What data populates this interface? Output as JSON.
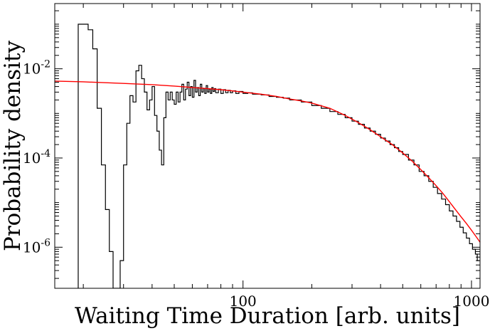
{
  "chart_data": {
    "type": "line",
    "title": "",
    "xlabel": "Waiting Time Duration [arb. units]",
    "ylabel": "Probability density",
    "x_scale": "log",
    "y_scale": "log",
    "xlim": [
      15,
      1090
    ],
    "ylim": [
      1.2e-07,
      0.29
    ],
    "grid": false,
    "legend": "none",
    "x_ticks": [
      {
        "value": 100,
        "label": "100"
      },
      {
        "value": 1000,
        "label": "1000"
      }
    ],
    "y_ticks": [
      {
        "value": 0.01,
        "base": "10",
        "exp": "-2"
      },
      {
        "value": 0.0001,
        "base": "10",
        "exp": "-4"
      },
      {
        "value": 1e-06,
        "base": "10",
        "exp": "-6"
      }
    ],
    "series": [
      {
        "kind": "histogram",
        "color": "#000000",
        "points": [
          [
            19,
            1.2e-07
          ],
          [
            19,
            0.1
          ],
          [
            21,
            0.1
          ],
          [
            21,
            0.075
          ],
          [
            22,
            0.075
          ],
          [
            22,
            0.028
          ],
          [
            23,
            0.028
          ],
          [
            23,
            0.0013
          ],
          [
            24,
            0.0013
          ],
          [
            24,
            7e-05
          ],
          [
            25,
            7e-05
          ],
          [
            25,
            7e-06
          ],
          [
            26,
            7e-06
          ],
          [
            26,
            8e-07
          ],
          [
            27,
            8e-07
          ],
          [
            27,
            1.2e-07
          ],
          [
            29,
            1.2e-07
          ],
          [
            29,
            5e-07
          ],
          [
            30,
            5e-07
          ],
          [
            30,
            7e-05
          ],
          [
            31,
            7e-05
          ],
          [
            31,
            0.0006
          ],
          [
            32,
            0.0006
          ],
          [
            32,
            0.0025
          ],
          [
            33,
            0.0025
          ],
          [
            33,
            0.0018
          ],
          [
            34,
            0.0018
          ],
          [
            34,
            0.009
          ],
          [
            35,
            0.009
          ],
          [
            35,
            0.012
          ],
          [
            36,
            0.012
          ],
          [
            36,
            0.006
          ],
          [
            37,
            0.006
          ],
          [
            37,
            0.003
          ],
          [
            38,
            0.003
          ],
          [
            38,
            0.0012
          ],
          [
            39,
            0.0012
          ],
          [
            39,
            0.002
          ],
          [
            40,
            0.002
          ],
          [
            40,
            0.004
          ],
          [
            41,
            0.004
          ],
          [
            41,
            0.0009
          ],
          [
            42,
            0.0009
          ],
          [
            42,
            0.0004
          ],
          [
            43,
            0.0004
          ],
          [
            43,
            0.00015
          ],
          [
            44,
            0.00015
          ],
          [
            44,
            7e-05
          ],
          [
            45,
            7e-05
          ],
          [
            45,
            0.0008
          ],
          [
            46,
            0.0008
          ],
          [
            46,
            0.003
          ],
          [
            47,
            0.003
          ],
          [
            47,
            0.002
          ],
          [
            48,
            0.002
          ],
          [
            48,
            0.003
          ],
          [
            49,
            0.003
          ],
          [
            49,
            0.002
          ],
          [
            50,
            0.002
          ],
          [
            50,
            0.0016
          ],
          [
            51,
            0.0016
          ],
          [
            51,
            0.003
          ],
          [
            52,
            0.003
          ],
          [
            52,
            0.0018
          ],
          [
            53,
            0.0018
          ],
          [
            53,
            0.003
          ],
          [
            54,
            0.003
          ],
          [
            54,
            0.0045
          ],
          [
            55,
            0.0045
          ],
          [
            55,
            0.002
          ],
          [
            56,
            0.002
          ],
          [
            56,
            0.0035
          ],
          [
            57,
            0.0035
          ],
          [
            57,
            0.005
          ],
          [
            58,
            0.005
          ],
          [
            58,
            0.0025
          ],
          [
            59,
            0.0025
          ],
          [
            59,
            0.004
          ],
          [
            60,
            0.004
          ],
          [
            60,
            0.0023
          ],
          [
            61,
            0.0023
          ],
          [
            61,
            0.0055
          ],
          [
            62,
            0.0055
          ],
          [
            62,
            0.003
          ],
          [
            63,
            0.003
          ],
          [
            63,
            0.0038
          ],
          [
            64,
            0.0038
          ],
          [
            64,
            0.0025
          ],
          [
            65,
            0.0025
          ],
          [
            65,
            0.0045
          ],
          [
            66,
            0.0045
          ],
          [
            66,
            0.003
          ],
          [
            67,
            0.003
          ],
          [
            67,
            0.0036
          ],
          [
            68,
            0.0036
          ],
          [
            68,
            0.0028
          ],
          [
            69,
            0.0028
          ],
          [
            69,
            0.0042
          ],
          [
            70,
            0.0042
          ],
          [
            70,
            0.003
          ],
          [
            71,
            0.003
          ],
          [
            71,
            0.0035
          ],
          [
            72,
            0.0035
          ],
          [
            72,
            0.0028
          ],
          [
            73,
            0.0028
          ],
          [
            73,
            0.0038
          ],
          [
            74,
            0.0038
          ],
          [
            74,
            0.0031
          ],
          [
            75,
            0.0031
          ],
          [
            75,
            0.0036
          ],
          [
            76,
            0.0036
          ],
          [
            76,
            0.0029
          ],
          [
            78,
            0.0029
          ],
          [
            78,
            0.0035
          ],
          [
            80,
            0.0035
          ],
          [
            80,
            0.0028
          ],
          [
            82,
            0.0028
          ],
          [
            82,
            0.0034
          ],
          [
            84,
            0.0034
          ],
          [
            84,
            0.0029
          ],
          [
            86,
            0.0029
          ],
          [
            86,
            0.0033
          ],
          [
            88,
            0.0033
          ],
          [
            88,
            0.0029
          ],
          [
            90,
            0.0029
          ],
          [
            90,
            0.0032
          ],
          [
            93,
            0.0032
          ],
          [
            93,
            0.0028
          ],
          [
            96,
            0.0028
          ],
          [
            96,
            0.0031
          ],
          [
            100,
            0.0031
          ],
          [
            100,
            0.0028
          ],
          [
            105,
            0.0028
          ],
          [
            105,
            0.0029
          ],
          [
            110,
            0.0029
          ],
          [
            110,
            0.0027
          ],
          [
            115,
            0.0027
          ],
          [
            115,
            0.0027
          ],
          [
            120,
            0.0027
          ],
          [
            120,
            0.0026
          ],
          [
            130,
            0.0026
          ],
          [
            130,
            0.0024
          ],
          [
            140,
            0.0024
          ],
          [
            140,
            0.0023
          ],
          [
            150,
            0.0023
          ],
          [
            150,
            0.0022
          ],
          [
            160,
            0.0022
          ],
          [
            160,
            0.002
          ],
          [
            180,
            0.002
          ],
          [
            180,
            0.0018
          ],
          [
            200,
            0.0018
          ],
          [
            200,
            0.0015
          ],
          [
            220,
            0.0015
          ],
          [
            220,
            0.0013
          ],
          [
            240,
            0.0013
          ],
          [
            240,
            0.0011
          ],
          [
            260,
            0.0011
          ],
          [
            260,
            0.00095
          ],
          [
            280,
            0.00095
          ],
          [
            280,
            0.0008
          ],
          [
            300,
            0.0008
          ],
          [
            300,
            0.00067
          ],
          [
            320,
            0.00067
          ],
          [
            320,
            0.00057
          ],
          [
            340,
            0.00057
          ],
          [
            340,
            0.00047
          ],
          [
            360,
            0.00047
          ],
          [
            360,
            0.0004
          ],
          [
            380,
            0.0004
          ],
          [
            380,
            0.00034
          ],
          [
            400,
            0.00034
          ],
          [
            400,
            0.00028
          ],
          [
            420,
            0.00028
          ],
          [
            420,
            0.00024
          ],
          [
            440,
            0.00024
          ],
          [
            440,
            0.0002
          ],
          [
            460,
            0.0002
          ],
          [
            460,
            0.00017
          ],
          [
            480,
            0.00017
          ],
          [
            480,
            0.00014
          ],
          [
            500,
            0.00014
          ],
          [
            500,
            0.00012
          ],
          [
            530,
            0.00012
          ],
          [
            530,
            9e-05
          ],
          [
            560,
            9e-05
          ],
          [
            560,
            7e-05
          ],
          [
            590,
            7e-05
          ],
          [
            590,
            5e-05
          ],
          [
            620,
            5e-05
          ],
          [
            620,
            4e-05
          ],
          [
            650,
            4e-05
          ],
          [
            650,
            3e-05
          ],
          [
            680,
            3e-05
          ],
          [
            680,
            2.2e-05
          ],
          [
            710,
            2.2e-05
          ],
          [
            710,
            1.6e-05
          ],
          [
            740,
            1.6e-05
          ],
          [
            740,
            1.2e-05
          ],
          [
            770,
            1.2e-05
          ],
          [
            770,
            9e-06
          ],
          [
            800,
            9e-06
          ],
          [
            800,
            6.5e-06
          ],
          [
            830,
            6.5e-06
          ],
          [
            830,
            5e-06
          ],
          [
            860,
            5e-06
          ],
          [
            860,
            3.8e-06
          ],
          [
            890,
            3.8e-06
          ],
          [
            890,
            2.8e-06
          ],
          [
            920,
            2.8e-06
          ],
          [
            920,
            2.1e-06
          ],
          [
            950,
            2.1e-06
          ],
          [
            950,
            1.6e-06
          ],
          [
            980,
            1.6e-06
          ],
          [
            980,
            1.2e-06
          ],
          [
            1010,
            1.2e-06
          ],
          [
            1010,
            9e-07
          ],
          [
            1040,
            9e-07
          ],
          [
            1040,
            7e-07
          ],
          [
            1060,
            7e-07
          ],
          [
            1060,
            5e-07
          ],
          [
            1080,
            5e-07
          ]
        ]
      },
      {
        "kind": "fit",
        "color": "#ff0000",
        "points": [
          [
            15,
            0.0053
          ],
          [
            20,
            0.0051
          ],
          [
            30,
            0.0047
          ],
          [
            40,
            0.0044
          ],
          [
            50,
            0.0041
          ],
          [
            60,
            0.0038
          ],
          [
            70,
            0.0036
          ],
          [
            80,
            0.0034
          ],
          [
            90,
            0.0032
          ],
          [
            100,
            0.003
          ],
          [
            120,
            0.0027
          ],
          [
            140,
            0.0024
          ],
          [
            160,
            0.0021
          ],
          [
            180,
            0.0019
          ],
          [
            200,
            0.0017
          ],
          [
            240,
            0.0013
          ],
          [
            280,
            0.0009
          ],
          [
            320,
            0.00062
          ],
          [
            360,
            0.00043
          ],
          [
            400,
            0.0003
          ],
          [
            450,
            0.0002
          ],
          [
            500,
            0.00013
          ],
          [
            550,
            8.5e-05
          ],
          [
            600,
            5.5e-05
          ],
          [
            650,
            3.6e-05
          ],
          [
            700,
            2.4e-05
          ],
          [
            750,
            1.6e-05
          ],
          [
            800,
            1.05e-05
          ],
          [
            850,
            7e-06
          ],
          [
            900,
            4.8e-06
          ],
          [
            950,
            3.4e-06
          ],
          [
            1000,
            2.4e-06
          ],
          [
            1050,
            1.7e-06
          ],
          [
            1090,
            1.3e-06
          ]
        ]
      }
    ]
  }
}
